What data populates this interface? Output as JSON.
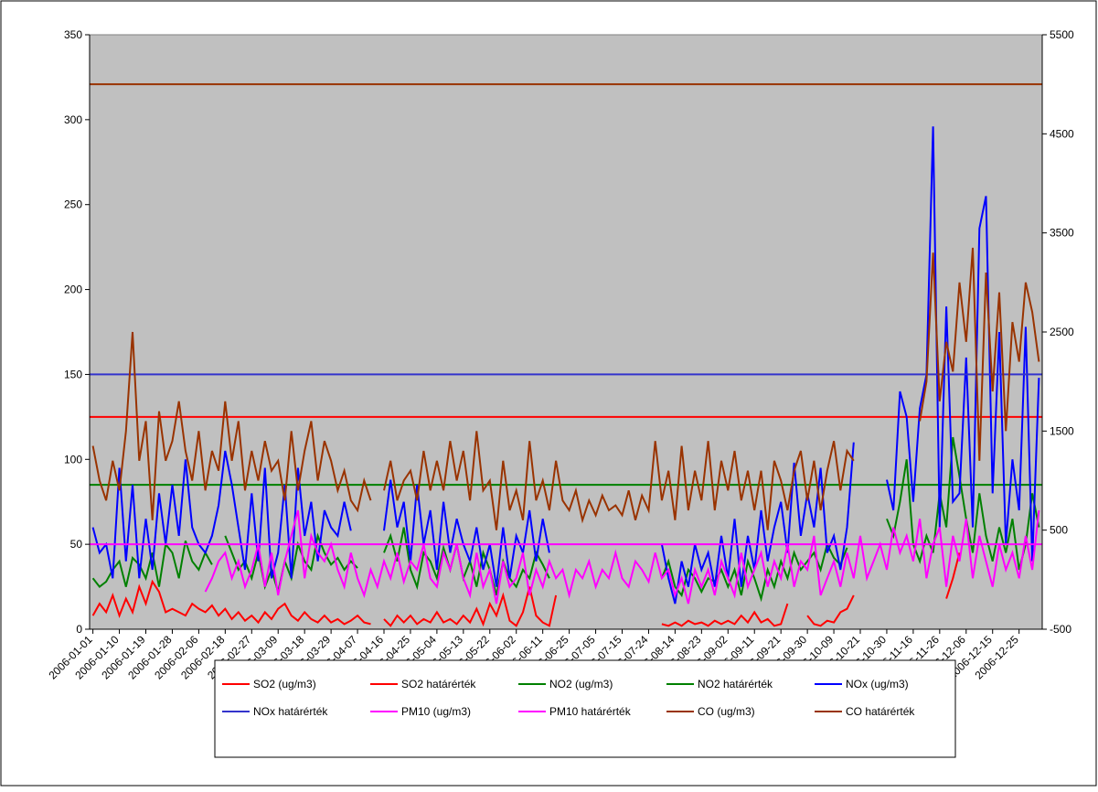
{
  "chart_data": {
    "type": "line",
    "categories": [
      "2006-01-01",
      null,
      null,
      null,
      "2006-01-10",
      null,
      null,
      null,
      "2006-01-19",
      null,
      null,
      null,
      "2006-01-28",
      null,
      null,
      null,
      "2006-02-06",
      null,
      null,
      null,
      "2006-02-18",
      null,
      null,
      null,
      "2006-02-27",
      null,
      null,
      null,
      "2006-03-09",
      null,
      null,
      null,
      "2006-03-18",
      null,
      null,
      null,
      "2006-03-29",
      null,
      null,
      null,
      "2006-04-07",
      null,
      null,
      null,
      "2006-04-16",
      null,
      null,
      null,
      "2006-04-25",
      null,
      null,
      null,
      "2006-05-04",
      null,
      null,
      null,
      "2006-05-13",
      null,
      null,
      null,
      "2006-05-22",
      null,
      null,
      null,
      "2006-06-02",
      null,
      null,
      null,
      "2006-06-11",
      null,
      null,
      null,
      "2006-06-25",
      null,
      null,
      null,
      "2006-07-05",
      null,
      null,
      null,
      "2006-07-15",
      null,
      null,
      null,
      "2006-07-24",
      null,
      null,
      null,
      "2006-08-14",
      null,
      null,
      null,
      "2006-08-23",
      null,
      null,
      null,
      "2006-09-02",
      null,
      null,
      null,
      "2006-09-11",
      null,
      null,
      null,
      "2006-09-21",
      null,
      null,
      null,
      "2006-09-30",
      null,
      null,
      null,
      "2006-10-09",
      null,
      null,
      null,
      "2006-10-21",
      null,
      null,
      null,
      "2006-10-30",
      null,
      null,
      null,
      "2006-11-16",
      null,
      null,
      null,
      "2006-11-26",
      null,
      null,
      null,
      "2006-12-06",
      null,
      null,
      null,
      "2006-12-15",
      null,
      null,
      null,
      "2006-12-25",
      null,
      null,
      null
    ],
    "ylim": [
      0,
      350
    ],
    "yticks": [
      0,
      50,
      100,
      150,
      200,
      250,
      300,
      350
    ],
    "y2lim": [
      -500,
      5500
    ],
    "y2ticks": [
      -500,
      500,
      1500,
      2500,
      3500,
      4500,
      5500
    ],
    "background": "#c0c0c0",
    "series": [
      {
        "name": "SO2 (ug/m3)",
        "color": "#ff0000",
        "values": [
          8,
          15,
          10,
          20,
          8,
          18,
          10,
          25,
          15,
          28,
          22,
          10,
          12,
          10,
          8,
          15,
          12,
          10,
          14,
          8,
          12,
          6,
          10,
          5,
          8,
          4,
          10,
          6,
          12,
          15,
          8,
          5,
          10,
          6,
          4,
          8,
          4,
          6,
          3,
          5,
          8,
          4,
          3,
          null,
          6,
          2,
          8,
          4,
          8,
          3,
          6,
          4,
          10,
          4,
          6,
          3,
          8,
          4,
          12,
          3,
          15,
          8,
          20,
          5,
          2,
          10,
          25,
          8,
          4,
          2,
          20,
          null,
          null,
          null,
          null,
          null,
          null,
          null,
          null,
          null,
          null,
          null,
          null,
          null,
          null,
          null,
          3,
          2,
          4,
          2,
          5,
          3,
          4,
          2,
          5,
          3,
          5,
          3,
          8,
          4,
          10,
          4,
          6,
          2,
          3,
          15,
          null,
          null,
          8,
          3,
          2,
          5,
          4,
          10,
          12,
          20,
          null,
          null,
          null,
          null,
          null,
          null,
          null,
          null,
          null,
          null,
          null,
          null,
          null,
          18,
          30,
          45,
          null,
          null,
          null,
          null,
          null,
          null,
          null,
          null,
          null,
          null,
          null,
          null
        ]
      },
      {
        "name": "SO2 határérték",
        "color": "#ff0000",
        "value": 125
      },
      {
        "name": "NO2 (ug/m3)",
        "color": "#008000",
        "values": [
          30,
          25,
          28,
          35,
          40,
          25,
          42,
          38,
          30,
          45,
          25,
          50,
          45,
          30,
          52,
          40,
          35,
          45,
          38,
          null,
          55,
          45,
          35,
          40,
          30,
          45,
          25,
          35,
          22,
          40,
          30,
          50,
          40,
          35,
          55,
          45,
          38,
          42,
          35,
          40,
          36,
          null,
          null,
          null,
          45,
          55,
          40,
          60,
          35,
          25,
          45,
          40,
          30,
          48,
          35,
          50,
          30,
          40,
          25,
          45,
          35,
          20,
          40,
          30,
          25,
          35,
          30,
          45,
          38,
          30,
          null,
          null,
          null,
          null,
          null,
          null,
          null,
          null,
          null,
          null,
          null,
          null,
          null,
          null,
          null,
          null,
          30,
          40,
          25,
          20,
          35,
          30,
          22,
          30,
          28,
          35,
          25,
          35,
          20,
          40,
          30,
          18,
          35,
          25,
          40,
          30,
          45,
          35,
          40,
          45,
          35,
          50,
          42,
          38,
          48,
          null,
          null,
          null,
          null,
          null,
          65,
          55,
          75,
          100,
          50,
          40,
          55,
          45,
          80,
          60,
          113,
          90,
          65,
          45,
          80,
          55,
          40,
          60,
          45,
          65,
          35,
          50,
          80,
          60
        ]
      },
      {
        "name": "NO2 határérték",
        "color": "#008000",
        "value": 85
      },
      {
        "name": "NOx (ug/m3)",
        "color": "#0000ff",
        "values": [
          60,
          45,
          50,
          30,
          95,
          40,
          85,
          30,
          65,
          35,
          80,
          50,
          85,
          55,
          100,
          60,
          50,
          45,
          55,
          73,
          105,
          85,
          60,
          35,
          80,
          40,
          95,
          30,
          45,
          85,
          30,
          95,
          55,
          75,
          40,
          70,
          60,
          55,
          75,
          58,
          null,
          null,
          null,
          null,
          58,
          88,
          60,
          75,
          40,
          85,
          50,
          70,
          35,
          75,
          45,
          65,
          50,
          40,
          60,
          35,
          50,
          25,
          60,
          30,
          55,
          45,
          70,
          40,
          65,
          45,
          null,
          null,
          null,
          null,
          null,
          null,
          null,
          null,
          null,
          null,
          null,
          null,
          null,
          null,
          null,
          null,
          50,
          30,
          15,
          40,
          25,
          50,
          35,
          45,
          25,
          55,
          30,
          65,
          25,
          55,
          35,
          70,
          40,
          60,
          75,
          45,
          98,
          55,
          80,
          60,
          95,
          45,
          55,
          35,
          60,
          110,
          null,
          null,
          null,
          null,
          88,
          70,
          140,
          125,
          75,
          130,
          150,
          296,
          60,
          190,
          75,
          80,
          160,
          60,
          236,
          255,
          80,
          175,
          50,
          100,
          70,
          178,
          40,
          148
        ]
      },
      {
        "name": "NOx határérték",
        "color": "#3333cc",
        "value": 150
      },
      {
        "name": "PM10 (ug/m3)",
        "color": "#ff00ff",
        "values": [
          null,
          null,
          null,
          null,
          null,
          null,
          null,
          null,
          null,
          null,
          null,
          null,
          null,
          null,
          null,
          null,
          null,
          22,
          30,
          40,
          45,
          30,
          40,
          25,
          35,
          50,
          25,
          45,
          20,
          40,
          55,
          70,
          30,
          55,
          45,
          40,
          50,
          35,
          25,
          45,
          30,
          20,
          35,
          25,
          40,
          30,
          45,
          28,
          40,
          35,
          50,
          30,
          25,
          45,
          35,
          50,
          30,
          20,
          45,
          25,
          35,
          15,
          40,
          25,
          30,
          45,
          20,
          35,
          25,
          40,
          30,
          35,
          20,
          35,
          30,
          40,
          25,
          35,
          30,
          45,
          30,
          25,
          40,
          35,
          28,
          45,
          30,
          35,
          20,
          30,
          15,
          35,
          25,
          35,
          20,
          40,
          30,
          20,
          45,
          25,
          35,
          45,
          25,
          40,
          30,
          50,
          25,
          40,
          35,
          55,
          20,
          30,
          40,
          25,
          45,
          30,
          55,
          30,
          40,
          50,
          35,
          60,
          45,
          55,
          40,
          65,
          30,
          50,
          60,
          25,
          55,
          40,
          65,
          30,
          55,
          40,
          25,
          50,
          35,
          45,
          30,
          55,
          35,
          70
        ]
      },
      {
        "name": "PM10 határérték",
        "color": "#ff00ff",
        "value": 50
      },
      {
        "name": "CO (ug/m3)",
        "color": "#993300",
        "axis": "y2",
        "values": [
          1350,
          1000,
          800,
          1200,
          900,
          1500,
          2500,
          1200,
          1600,
          600,
          1700,
          1200,
          1400,
          1800,
          1300,
          1000,
          1500,
          900,
          1300,
          1100,
          1800,
          1200,
          1600,
          900,
          1300,
          1000,
          1400,
          1100,
          1200,
          800,
          1500,
          900,
          1300,
          1600,
          1000,
          1400,
          1200,
          900,
          1100,
          800,
          700,
          1000,
          800,
          null,
          900,
          1200,
          800,
          1000,
          1100,
          800,
          1300,
          900,
          1200,
          900,
          1400,
          1000,
          1300,
          800,
          1500,
          900,
          1000,
          500,
          1200,
          700,
          900,
          600,
          1400,
          800,
          1000,
          700,
          1200,
          800,
          700,
          900,
          600,
          800,
          650,
          850,
          700,
          750,
          650,
          900,
          600,
          850,
          700,
          1400,
          800,
          1100,
          600,
          1350,
          700,
          1100,
          800,
          1400,
          700,
          1200,
          900,
          1300,
          800,
          1100,
          700,
          1100,
          500,
          1200,
          1000,
          700,
          1100,
          1300,
          800,
          1200,
          700,
          1100,
          1400,
          900,
          1300,
          1200,
          null,
          null,
          null,
          null,
          null,
          null,
          null,
          null,
          null,
          1600,
          2000,
          3300,
          1800,
          2400,
          2100,
          3000,
          2400,
          3350,
          1200,
          3100,
          1900,
          2900,
          1500,
          2600,
          2200,
          3000,
          2700,
          2200
        ]
      },
      {
        "name": "CO határérték",
        "color": "#993300",
        "axis": "y2",
        "value": 5000
      }
    ]
  }
}
